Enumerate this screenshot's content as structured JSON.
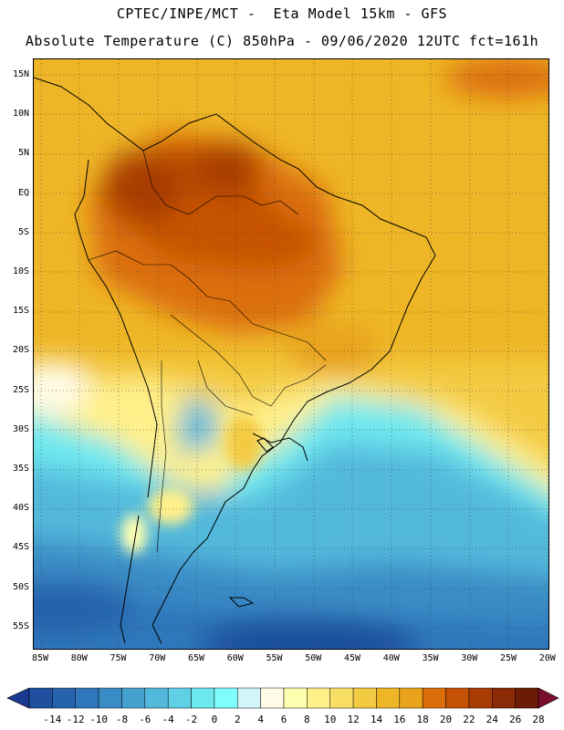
{
  "header": {
    "line1": "CPTEC/INPE/MCT -  Eta Model 15km - GFS",
    "line2": "Absolute Temperature (C) 850hPa - 09/06/2020 12UTC fct=161h"
  },
  "map": {
    "lat_ticks": [
      "15N",
      "10N",
      "5N",
      "EQ",
      "5S",
      "10S",
      "15S",
      "20S",
      "25S",
      "30S",
      "35S",
      "40S",
      "45S",
      "50S",
      "55S"
    ],
    "lon_ticks": [
      "85W",
      "80W",
      "75W",
      "70W",
      "65W",
      "60W",
      "55W",
      "50W",
      "45W",
      "40W",
      "35W",
      "30W",
      "25W",
      "20W"
    ],
    "variable": "Absolute Temperature",
    "units": "C",
    "level": "850hPa"
  },
  "colorbar": {
    "labels": [
      "-14",
      "-12",
      "-10",
      "-8",
      "-6",
      "-4",
      "-2",
      "0",
      "2",
      "4",
      "6",
      "8",
      "10",
      "12",
      "14",
      "16",
      "18",
      "20",
      "22",
      "24",
      "26",
      "28"
    ],
    "colors": [
      "#1a3a8f",
      "#1f4f9e",
      "#2762ad",
      "#2f77ba",
      "#3a8cc6",
      "#45a2cf",
      "#52b9dc",
      "#5fd0e6",
      "#6ee8ef",
      "#7ffdfd",
      "#d2f4fb",
      "#fffbe6",
      "#ffffb0",
      "#fff08a",
      "#f9de66",
      "#f3cb43",
      "#eeb626",
      "#e8a31a",
      "#dc6e0a",
      "#c65205",
      "#a93c05",
      "#8a2a06",
      "#6c1c06",
      "#7a0f2c"
    ]
  }
}
